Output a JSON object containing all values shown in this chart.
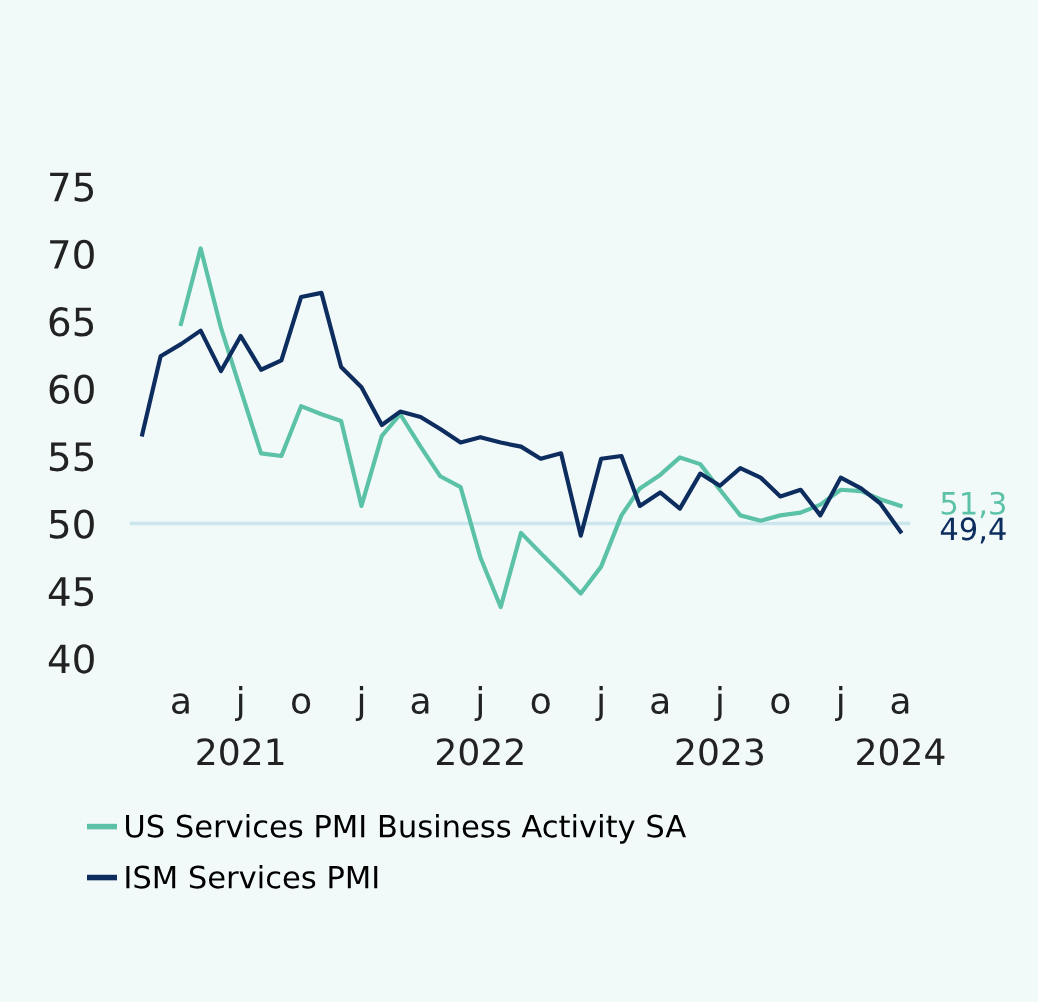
{
  "chart_data": {
    "type": "line",
    "x": [
      "2021-02",
      "2021-03",
      "2021-04",
      "2021-05",
      "2021-06",
      "2021-07",
      "2021-08",
      "2021-09",
      "2021-10",
      "2021-11",
      "2021-12",
      "2022-01",
      "2022-02",
      "2022-03",
      "2022-04",
      "2022-05",
      "2022-06",
      "2022-07",
      "2022-08",
      "2022-09",
      "2022-10",
      "2022-11",
      "2022-12",
      "2023-01",
      "2023-02",
      "2023-03",
      "2023-04",
      "2023-05",
      "2023-06",
      "2023-07",
      "2023-08",
      "2023-09",
      "2023-10",
      "2023-11",
      "2023-12",
      "2024-01",
      "2024-02",
      "2024-03",
      "2024-04"
    ],
    "series": [
      {
        "name": "US Services PMI Business Activity SA",
        "color": "#5bc2a7",
        "values": [
          null,
          null,
          64.8,
          70.4,
          64.5,
          59.9,
          55.2,
          55.0,
          58.7,
          58.1,
          57.6,
          51.3,
          56.5,
          58.1,
          55.7,
          53.5,
          52.7,
          47.5,
          43.8,
          49.3,
          47.8,
          46.3,
          44.8,
          46.8,
          50.6,
          52.6,
          53.6,
          54.9,
          54.4,
          52.5,
          50.6,
          50.2,
          50.6,
          50.8,
          51.4,
          52.5,
          52.4,
          51.8,
          51.3
        ]
      },
      {
        "name": "ISM Services PMI",
        "color": "#0d2d5e",
        "values": [
          56.6,
          62.4,
          63.3,
          64.3,
          61.3,
          63.9,
          61.4,
          62.1,
          66.8,
          67.1,
          61.6,
          60.1,
          57.3,
          58.3,
          57.9,
          57.0,
          56.0,
          56.4,
          56.0,
          55.7,
          54.8,
          55.2,
          49.1,
          54.8,
          55.0,
          51.3,
          52.3,
          51.1,
          53.7,
          52.8,
          54.1,
          53.4,
          52.0,
          52.5,
          50.6,
          53.4,
          52.6,
          51.5,
          49.4
        ]
      }
    ],
    "xlim": [
      "2021-01-13",
      "2024-04-16"
    ],
    "xticks": [
      {
        "value": "2021-04",
        "label": "a"
      },
      {
        "value": "2021-07",
        "label": "j\n2021"
      },
      {
        "value": "2021-10",
        "label": "o"
      },
      {
        "value": "2022-01",
        "label": "j"
      },
      {
        "value": "2022-04",
        "label": "a"
      },
      {
        "value": "2022-07",
        "label": "j\n2022"
      },
      {
        "value": "2022-10",
        "label": "o"
      },
      {
        "value": "2023-01",
        "label": "j"
      },
      {
        "value": "2023-04",
        "label": "a"
      },
      {
        "value": "2023-07",
        "label": "j\n2023"
      },
      {
        "value": "2023-10",
        "label": "o"
      },
      {
        "value": "2024-01",
        "label": "j"
      },
      {
        "value": "2024-04",
        "label": "a\n2024"
      }
    ],
    "ylim": [
      40,
      75
    ],
    "yticks": [
      40,
      45,
      50,
      55,
      60,
      65,
      70,
      75
    ],
    "ref_lines": [
      {
        "axis": "y",
        "value": 50,
        "color": "#cce6ee"
      }
    ],
    "annotations": [
      {
        "text": "51,3",
        "x": "2024-04",
        "y": 51.3
      },
      {
        "text": "49,4",
        "x": "2024-04",
        "y": 49.4
      }
    ],
    "legend": "bottom",
    "grid": false
  }
}
